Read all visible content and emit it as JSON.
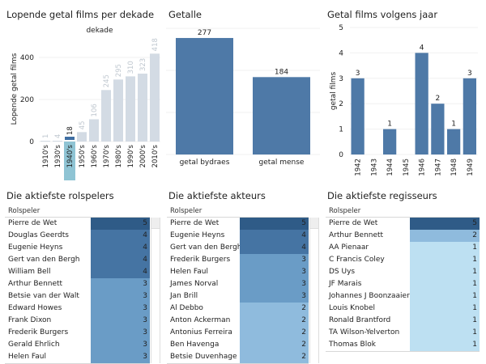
{
  "colors": {
    "bar_blue": "#4e79a7",
    "bar_faded": "#d3dbe4",
    "highlight": "#8fc4d4",
    "selected_bar": "#3f6ea3",
    "label_faded": "#c0c8d0",
    "shade5": "#2f5b87",
    "shade4": "#4574a3",
    "shade3": "#6a9cc6",
    "shade2": "#8fbbdd",
    "shade1": "#bde0f2"
  },
  "panels": {
    "decade": {
      "title": "Lopende getal films per dekade"
    },
    "counts": {
      "title": "Getalle"
    },
    "years": {
      "title": "Getal films volgens jaar"
    },
    "roleplayers": {
      "title": "Die aktiefste rolspelers",
      "column_header": "Rolspeler",
      "rows": [
        {
          "name": "Pierre de Wet",
          "value": 5
        },
        {
          "name": "Douglas Geerdts",
          "value": 4
        },
        {
          "name": "Eugenie Heyns",
          "value": 4
        },
        {
          "name": "Gert van den Bergh",
          "value": 4
        },
        {
          "name": "William Bell",
          "value": 4
        },
        {
          "name": "Arthur Bennett",
          "value": 3
        },
        {
          "name": "Betsie van der Walt",
          "value": 3
        },
        {
          "name": "Edward Howes",
          "value": 3
        },
        {
          "name": "Frank Dixon",
          "value": 3
        },
        {
          "name": "Frederik Burgers",
          "value": 3
        },
        {
          "name": "Gerald Ehrlich",
          "value": 3
        },
        {
          "name": "Helen Faul",
          "value": 3
        }
      ]
    },
    "actors": {
      "title": "Die aktiefste akteurs",
      "column_header": "Rolspeler",
      "rows": [
        {
          "name": "Pierre de Wet",
          "value": 5
        },
        {
          "name": "Eugenie Heyns",
          "value": 4
        },
        {
          "name": "Gert van den Bergh",
          "value": 4
        },
        {
          "name": "Frederik Burgers",
          "value": 3
        },
        {
          "name": "Helen Faul",
          "value": 3
        },
        {
          "name": "James Norval",
          "value": 3
        },
        {
          "name": "Jan Brill",
          "value": 3
        },
        {
          "name": "Al Debbo",
          "value": 2
        },
        {
          "name": "Anton Ackerman",
          "value": 2
        },
        {
          "name": "Antonius Ferreira",
          "value": 2
        },
        {
          "name": "Ben Havenga",
          "value": 2
        },
        {
          "name": "Betsie Duvenhage",
          "value": 2
        }
      ]
    },
    "directors": {
      "title": "Die aktiefste regisseurs",
      "column_header": "Rolspeler",
      "rows": [
        {
          "name": "Pierre de Wet",
          "value": 5
        },
        {
          "name": "Arthur Bennett",
          "value": 2
        },
        {
          "name": "AA Pienaar",
          "value": 1
        },
        {
          "name": "C Francis Coley",
          "value": 1
        },
        {
          "name": "DS Uys",
          "value": 1
        },
        {
          "name": "JF Marais",
          "value": 1
        },
        {
          "name": "Johannes J Boonzaaier",
          "value": 1
        },
        {
          "name": "Louis Knobel",
          "value": 1
        },
        {
          "name": "Ronald Brantford",
          "value": 1
        },
        {
          "name": "TA Wilson-Yelverton",
          "value": 1
        },
        {
          "name": "Thomas Blok",
          "value": 1
        }
      ]
    }
  },
  "chart_data": [
    {
      "type": "bar",
      "title": "Lopende getal films per dekade",
      "subtitle": "dekade",
      "xlabel": "",
      "ylabel": "Lopende getal films",
      "categories": [
        "1910's",
        "1930's",
        "1940's",
        "1950's",
        "1960's",
        "1970's",
        "1980's",
        "1990's",
        "2000's",
        "2010's"
      ],
      "values": [
        1,
        4,
        18,
        45,
        106,
        245,
        295,
        310,
        323,
        418
      ],
      "selected": "1940's",
      "yticks": [
        0,
        200,
        400
      ],
      "ylim": [
        0,
        500
      ],
      "grid": true
    },
    {
      "type": "bar",
      "title": "Getalle",
      "categories": [
        "getal bydraes",
        "getal mense"
      ],
      "values": [
        277,
        184
      ],
      "ylim": [
        0,
        300
      ],
      "grid": true
    },
    {
      "type": "bar",
      "title": "Getal films volgens jaar",
      "xlabel": "",
      "ylabel": "getal films",
      "categories": [
        "1942",
        "1943",
        "1944",
        "1945",
        "1946",
        "1947",
        "1948",
        "1949"
      ],
      "values": [
        3,
        0,
        1,
        0,
        4,
        2,
        1,
        3
      ],
      "yticks": [
        0,
        1,
        2,
        3,
        4,
        5
      ],
      "ylim": [
        0,
        5
      ],
      "grid": true
    }
  ]
}
